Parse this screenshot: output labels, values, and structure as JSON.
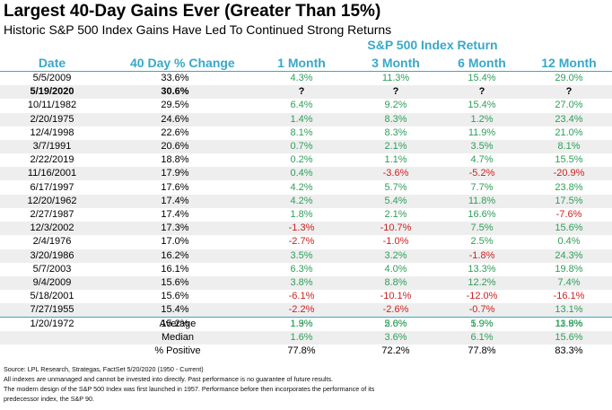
{
  "title": "Largest 40-Day Gains Ever (Greater Than 15%)",
  "subtitle": "Historic S&P 500 Index Gains Have Led To Continued Strong Returns",
  "group_header": "S&P 500 Index Return",
  "columns": {
    "date": "Date",
    "change": "40 Day % Change",
    "m1": "1 Month",
    "m3": "3 Month",
    "m6": "6 Month",
    "m12": "12 Month"
  },
  "colors": {
    "accent": "#39a8c8",
    "positive": "#2f9e5a",
    "negative": "#cc2222",
    "stripe": "#eeeeee"
  },
  "rows": [
    {
      "date": "5/5/2009",
      "change": "33.6%",
      "m1": "4.3%",
      "m3": "11.3%",
      "m6": "15.4%",
      "m12": "29.0%"
    },
    {
      "date": "5/19/2020",
      "change": "30.6%",
      "m1": "?",
      "m3": "?",
      "m6": "?",
      "m12": "?",
      "bold": true
    },
    {
      "date": "10/11/1982",
      "change": "29.5%",
      "m1": "6.4%",
      "m3": "9.2%",
      "m6": "15.4%",
      "m12": "27.0%"
    },
    {
      "date": "2/20/1975",
      "change": "24.6%",
      "m1": "1.4%",
      "m3": "8.3%",
      "m6": "1.2%",
      "m12": "23.4%"
    },
    {
      "date": "12/4/1998",
      "change": "22.6%",
      "m1": "8.1%",
      "m3": "8.3%",
      "m6": "11.9%",
      "m12": "21.0%"
    },
    {
      "date": "3/7/1991",
      "change": "20.6%",
      "m1": "0.7%",
      "m3": "2.1%",
      "m6": "3.5%",
      "m12": "8.1%"
    },
    {
      "date": "2/22/2019",
      "change": "18.8%",
      "m1": "0.2%",
      "m3": "1.1%",
      "m6": "4.7%",
      "m12": "15.5%"
    },
    {
      "date": "11/16/2001",
      "change": "17.9%",
      "m1": "0.4%",
      "m3": "-3.6%",
      "m6": "-5.2%",
      "m12": "-20.9%"
    },
    {
      "date": "6/17/1997",
      "change": "17.6%",
      "m1": "4.2%",
      "m3": "5.7%",
      "m6": "7.7%",
      "m12": "23.8%"
    },
    {
      "date": "12/20/1962",
      "change": "17.4%",
      "m1": "4.2%",
      "m3": "5.4%",
      "m6": "11.8%",
      "m12": "17.5%"
    },
    {
      "date": "2/27/1987",
      "change": "17.4%",
      "m1": "1.8%",
      "m3": "2.1%",
      "m6": "16.6%",
      "m12": "-7.6%"
    },
    {
      "date": "12/3/2002",
      "change": "17.3%",
      "m1": "-1.3%",
      "m3": "-10.7%",
      "m6": "7.5%",
      "m12": "15.6%"
    },
    {
      "date": "2/4/1976",
      "change": "17.0%",
      "m1": "-2.7%",
      "m3": "-1.0%",
      "m6": "2.5%",
      "m12": "0.4%"
    },
    {
      "date": "3/20/1986",
      "change": "16.2%",
      "m1": "3.5%",
      "m3": "3.2%",
      "m6": "-1.8%",
      "m12": "24.3%"
    },
    {
      "date": "5/7/2003",
      "change": "16.1%",
      "m1": "6.3%",
      "m3": "4.0%",
      "m6": "13.3%",
      "m12": "19.8%"
    },
    {
      "date": "9/4/2009",
      "change": "15.6%",
      "m1": "3.8%",
      "m3": "8.8%",
      "m6": "12.2%",
      "m12": "7.4%"
    },
    {
      "date": "5/18/2001",
      "change": "15.6%",
      "m1": "-6.1%",
      "m3": "-10.1%",
      "m6": "-12.0%",
      "m12": "-16.1%"
    },
    {
      "date": "7/27/1955",
      "change": "15.4%",
      "m1": "-2.2%",
      "m3": "-2.6%",
      "m6": "-0.7%",
      "m12": "13.1%"
    },
    {
      "date": "1/20/1972",
      "change": "15.2%",
      "m1": "1.3%",
      "m3": "5.0%",
      "m6": "1.9%",
      "m12": "13.8%"
    }
  ],
  "summary": [
    {
      "label": "Average",
      "m1": "1.9%",
      "m3": "2.6%",
      "m6": "5.9%",
      "m12": "11.9%",
      "color": "pos"
    },
    {
      "label": "Median",
      "m1": "1.6%",
      "m3": "3.6%",
      "m6": "6.1%",
      "m12": "15.6%",
      "color": "pos"
    },
    {
      "label": "% Positive",
      "m1": "77.8%",
      "m3": "72.2%",
      "m6": "77.8%",
      "m12": "83.3%",
      "color": "neu"
    }
  ],
  "footnotes": [
    "Source: LPL Research, Strategas, FactSet 5/20/2020 (1950 - Current)",
    "All indexes are unmanaged and cannot be invested into directly. Past performance is no guarantee of future results.",
    "The modern design of the S&P 500 Index was first launched in 1957. Performance before then incorporates the performance of its",
    "predecessor index, the S&P 90."
  ]
}
